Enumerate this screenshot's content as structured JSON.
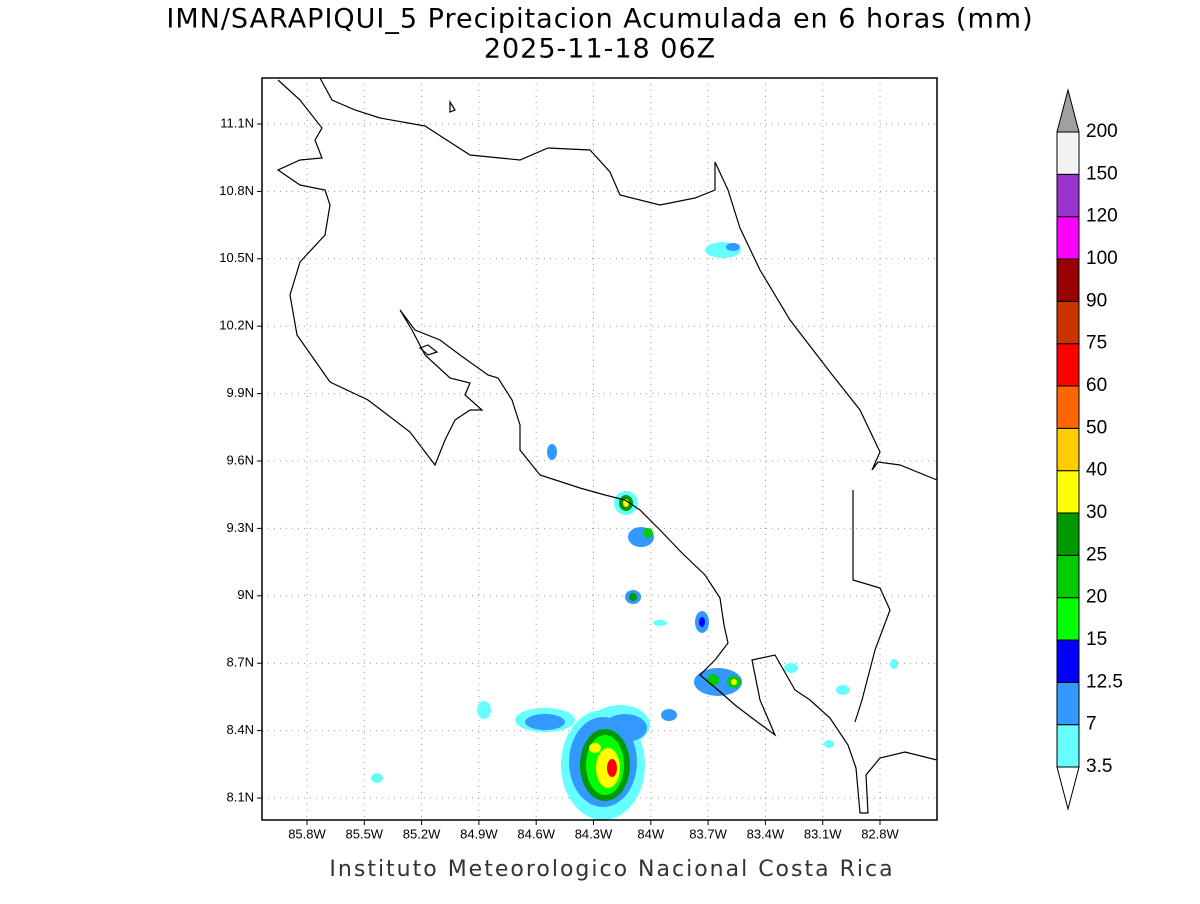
{
  "title": "IMN/SARAPIQUI_5 Precipitacion Acumulada en 6 horas (mm)",
  "subtitle": "2025-11-18 06Z",
  "footer": "Instituto Meteorologico Nacional Costa Rica",
  "x_labels": [
    "85.8W",
    "85.5W",
    "85.2W",
    "84.9W",
    "84.6W",
    "84.3W",
    "84W",
    "83.7W",
    "83.4W",
    "83.1W",
    "82.8W"
  ],
  "y_labels": [
    "11.1N",
    "10.8N",
    "10.5N",
    "10.2N",
    "9.9N",
    "9.6N",
    "9.3N",
    "9N",
    "8.7N",
    "8.4N",
    "8.1N"
  ],
  "colorbar": {
    "levels": [
      3.5,
      7,
      12.5,
      15,
      20,
      25,
      30,
      40,
      50,
      60,
      75,
      90,
      100,
      120,
      150,
      200
    ],
    "colors": [
      "#66ffff",
      "#3399ff",
      "#0000ff",
      "#00ff00",
      "#00cc00",
      "#009900",
      "#ffff00",
      "#ffcc00",
      "#ff6600",
      "#ff0000",
      "#cc3300",
      "#990000",
      "#ff00ff",
      "#9933cc",
      "#f2f2f2"
    ],
    "under_color": "#ffffff",
    "over_color": "#a0a0a0"
  }
}
